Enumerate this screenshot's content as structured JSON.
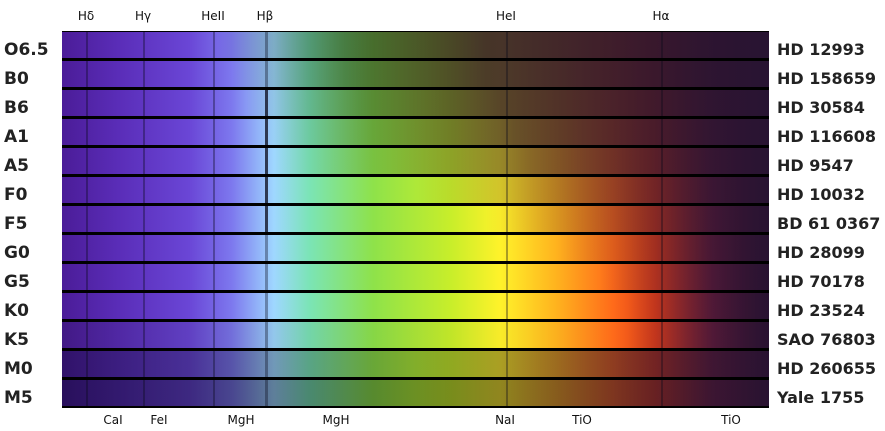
{
  "top_lines": [
    {
      "label": "Hδ"
    },
    {
      "label": "Hγ"
    },
    {
      "label": "HeII"
    },
    {
      "label": "Hβ"
    },
    {
      "label": "HeI"
    },
    {
      "label": "Hα"
    }
  ],
  "bottom_lines": [
    {
      "label": "CaI"
    },
    {
      "label": "FeI"
    },
    {
      "label": "MgH"
    },
    {
      "label": "MgH"
    },
    {
      "label": "NaI"
    },
    {
      "label": "TiO"
    },
    {
      "label": "TiO"
    }
  ],
  "rows": [
    {
      "class": "O6.5",
      "star": "HD 12993"
    },
    {
      "class": "B0",
      "star": "HD 158659"
    },
    {
      "class": "B6",
      "star": "HD 30584"
    },
    {
      "class": "A1",
      "star": "HD 116608"
    },
    {
      "class": "A5",
      "star": "HD 9547"
    },
    {
      "class": "F0",
      "star": "HD 10032"
    },
    {
      "class": "F5",
      "star": "BD 61 0367"
    },
    {
      "class": "G0",
      "star": "HD 28099"
    },
    {
      "class": "G5",
      "star": "HD 70178"
    },
    {
      "class": "K0",
      "star": "HD 23524"
    },
    {
      "class": "K5",
      "star": "SAO 76803"
    },
    {
      "class": "M0",
      "star": "HD 260655"
    },
    {
      "class": "M5",
      "star": "Yale 1755"
    }
  ]
}
